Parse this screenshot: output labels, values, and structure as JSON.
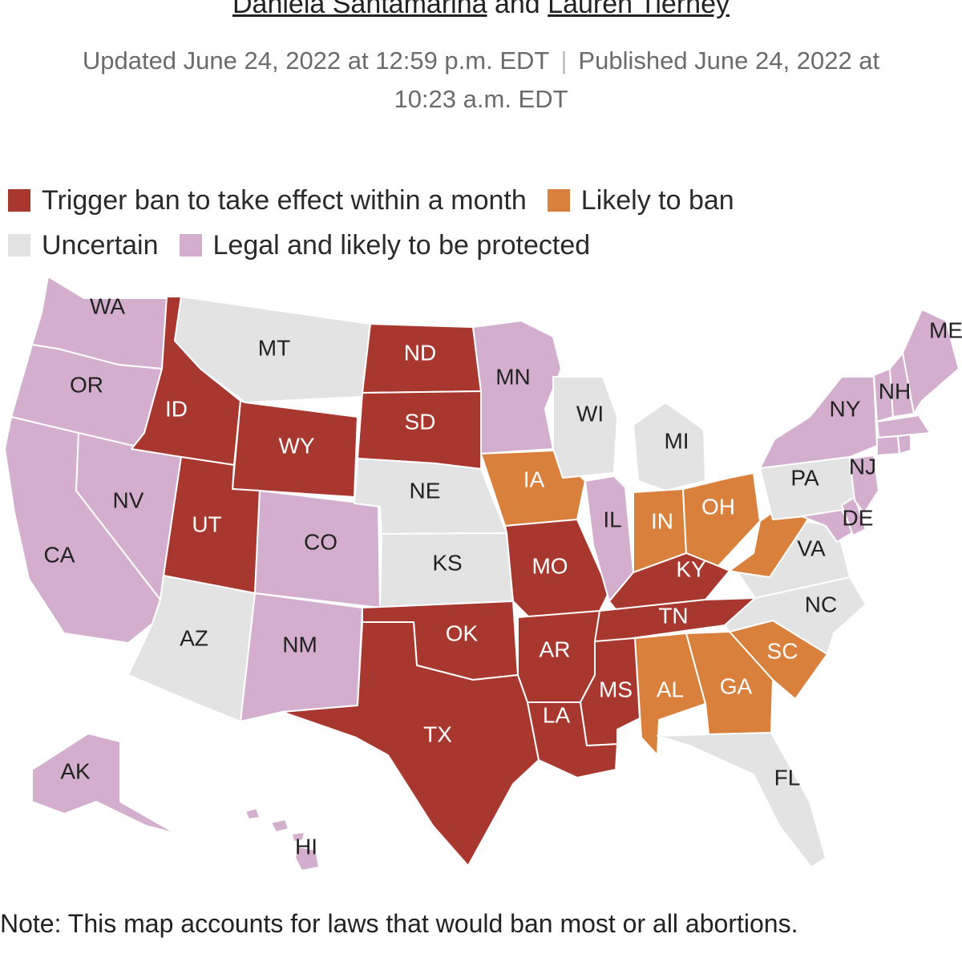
{
  "header": {
    "author1": "Daniela Santamarina",
    "and_word": "and",
    "author2": "Lauren Tierney",
    "updated": "Updated June 24, 2022 at 12:59 p.m. EDT",
    "separator": "|",
    "published": "Published June 24, 2022 at 10:23 a.m. EDT"
  },
  "legend": [
    {
      "key": "trigger",
      "label": "Trigger ban to take effect within a month",
      "color": "#a8382f"
    },
    {
      "key": "likely",
      "label": "Likely to ban",
      "color": "#d9803d"
    },
    {
      "key": "uncertain",
      "label": "Uncertain",
      "color": "#e3e3e3"
    },
    {
      "key": "legal",
      "label": "Legal and likely to be protected",
      "color": "#d4aece"
    }
  ],
  "label_colors": {
    "dark": "#ffffff",
    "light": "#222222"
  },
  "states": {
    "WA": "legal",
    "OR": "legal",
    "CA": "legal",
    "NV": "legal",
    "CO": "legal",
    "NM": "legal",
    "MN": "legal",
    "IL": "legal",
    "NY": "legal",
    "NH": "legal",
    "ME": "legal",
    "NJ": "legal",
    "DE": "legal",
    "AK": "legal",
    "HI": "legal",
    "VT": "legal",
    "MA": "legal",
    "CT": "legal",
    "RI": "legal",
    "MD": "legal",
    "ID": "trigger",
    "UT": "trigger",
    "WY": "trigger",
    "ND": "trigger",
    "SD": "trigger",
    "MO": "trigger",
    "OK": "trigger",
    "TX": "trigger",
    "AR": "trigger",
    "LA": "trigger",
    "MS": "trigger",
    "KY": "trigger",
    "TN": "trigger",
    "IA": "likely",
    "IN": "likely",
    "OH": "likely",
    "AL": "likely",
    "GA": "likely",
    "SC": "likely",
    "WV": "likely",
    "MT": "uncertain",
    "AZ": "uncertain",
    "NE": "uncertain",
    "KS": "uncertain",
    "WI": "uncertain",
    "MI": "uncertain",
    "PA": "uncertain",
    "VA": "uncertain",
    "NC": "uncertain",
    "FL": "uncertain"
  },
  "labels": [
    "WA",
    "OR",
    "CA",
    "NV",
    "ID",
    "MT",
    "WY",
    "UT",
    "AZ",
    "CO",
    "NM",
    "ND",
    "SD",
    "NE",
    "KS",
    "OK",
    "TX",
    "MN",
    "IA",
    "MO",
    "AR",
    "LA",
    "WI",
    "IL",
    "MI",
    "IN",
    "OH",
    "KY",
    "TN",
    "MS",
    "AL",
    "GA",
    "SC",
    "FL",
    "NC",
    "VA",
    "PA",
    "NY",
    "NJ",
    "DE",
    "NH",
    "ME",
    "AK",
    "HI"
  ],
  "note": "Note: This map accounts for laws that would ban most or all abortions."
}
